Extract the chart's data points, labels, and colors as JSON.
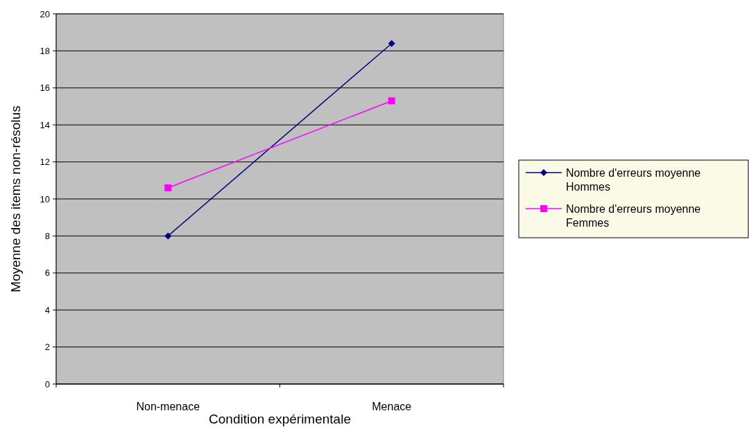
{
  "chart_data": {
    "type": "line",
    "xlabel": "Condition expérimentale",
    "ylabel": "Moyenne des items non-résolus",
    "categories": [
      "Non-menace",
      "Menace"
    ],
    "series": [
      {
        "name": "Nombre d'erreurs moyenne Hommes",
        "color": "#000080",
        "values": [
          8.0,
          18.4
        ],
        "marker": "diamond"
      },
      {
        "name": "Nombre d'erreurs moyenne Femmes",
        "color": "#ff00ff",
        "values": [
          10.6,
          15.3
        ],
        "marker": "square"
      }
    ],
    "ylim": [
      0,
      20
    ],
    "yticks": [
      0,
      2,
      4,
      6,
      8,
      10,
      12,
      14,
      16,
      18,
      20
    ],
    "grid": "y",
    "legend": "right",
    "line_style": "solid"
  }
}
